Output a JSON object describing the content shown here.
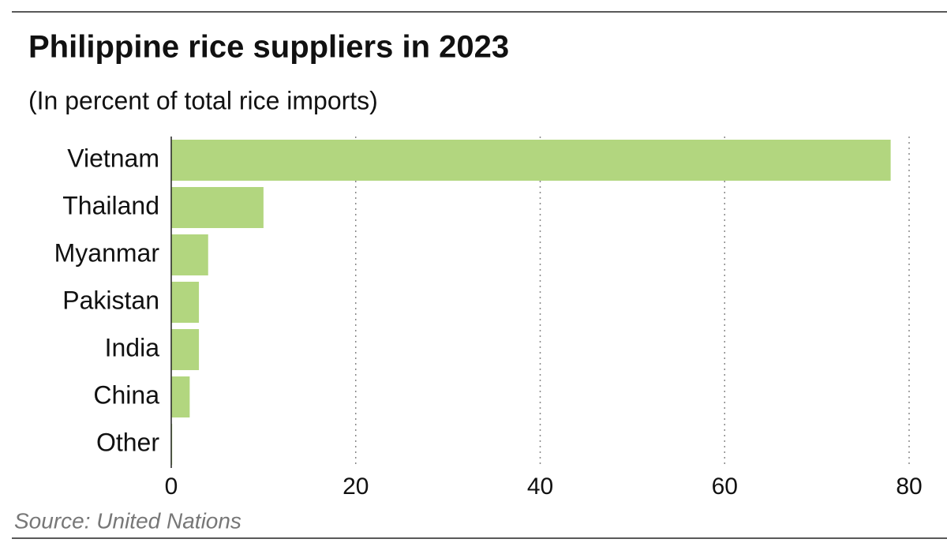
{
  "chart_data": {
    "type": "barh",
    "title": "Philippine rice suppliers in 2023",
    "subtitle": "(In percent of total rice imports)",
    "source": "Source: United Nations",
    "categories": [
      "Vietnam",
      "Thailand",
      "Myanmar",
      "Pakistan",
      "India",
      "China",
      "Other"
    ],
    "values": [
      78,
      10,
      4,
      3,
      3,
      2,
      0.1
    ],
    "color": "#b2d67f",
    "xlim": [
      0,
      80
    ],
    "xticks": [
      0,
      20,
      40,
      60,
      80
    ],
    "grid": true
  }
}
